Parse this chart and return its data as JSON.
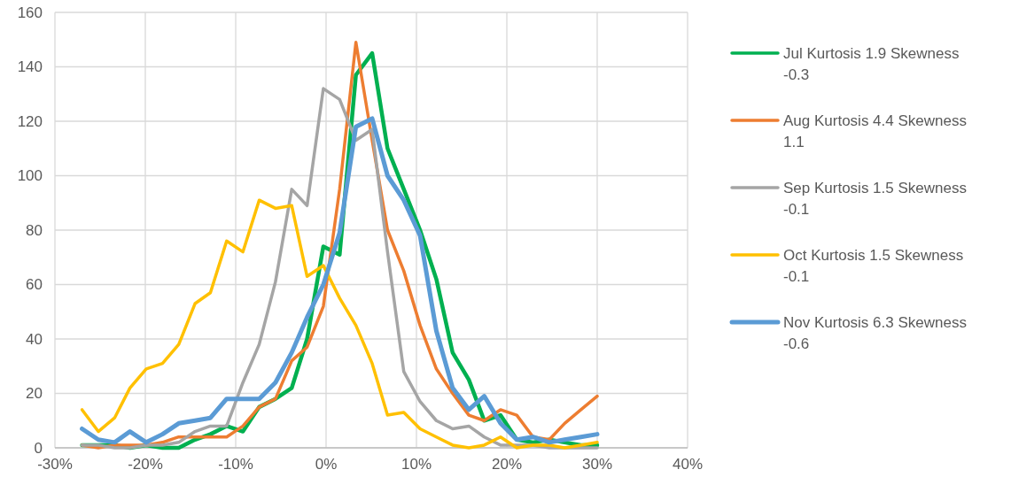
{
  "chart_data": {
    "type": "line",
    "x": [
      -27,
      -25.2,
      -23.4,
      -21.7,
      -19.9,
      -18.1,
      -16.3,
      -14.5,
      -12.8,
      -11,
      -9.2,
      -7.4,
      -5.6,
      -3.8,
      -2.1,
      -0.3,
      1.5,
      3.3,
      5.1,
      6.8,
      8.6,
      10.4,
      12.2,
      14,
      15.8,
      17.5,
      19.3,
      21.1,
      22.9,
      24.7,
      26.4,
      28.2,
      30
    ],
    "series": [
      {
        "name": "Jul Kurtosis 1.9 Skewness -0.3",
        "color": "#00b050",
        "values": [
          1,
          1,
          1,
          0,
          1,
          0,
          0,
          3,
          5,
          8,
          6,
          15,
          18,
          22,
          40,
          74,
          71,
          137,
          145,
          110,
          95,
          80,
          62,
          35,
          25,
          10,
          12,
          3,
          2,
          3,
          2,
          1,
          1
        ]
      },
      {
        "name": "Aug Kurtosis 4.4 Skewness 1.1",
        "color": "#ed7d31",
        "values": [
          1,
          0,
          1,
          1,
          1,
          2,
          4,
          4,
          4,
          4,
          8,
          15,
          18,
          32,
          37,
          52,
          95,
          149,
          113,
          80,
          65,
          45,
          29,
          20,
          12,
          10,
          14,
          12,
          4,
          3,
          9,
          14,
          19
        ]
      },
      {
        "name": "Sep Kurtosis 1.5 Skewness -0.1",
        "color": "#a5a5a5",
        "values": [
          1,
          1,
          0,
          0,
          1,
          1,
          2,
          6,
          8,
          8,
          24,
          38,
          61,
          95,
          89,
          132,
          128,
          113,
          117,
          72,
          28,
          17,
          10,
          7,
          8,
          4,
          1,
          1,
          1,
          0,
          0,
          0,
          0
        ]
      },
      {
        "name": "Oct Kurtosis 1.5 Skewness -0.1",
        "color": "#ffc000",
        "values": [
          14,
          6,
          11,
          22,
          29,
          31,
          38,
          53,
          57,
          76,
          72,
          91,
          88,
          89,
          63,
          67,
          55,
          45,
          31,
          12,
          13,
          7,
          4,
          1,
          0,
          1,
          4,
          0,
          1,
          1,
          0,
          1,
          2
        ]
      },
      {
        "name": "Nov Kurtosis 6.3 Skewness -0.6",
        "color": "#5b9bd5",
        "values": [
          7,
          3,
          2,
          6,
          2,
          5,
          9,
          10,
          11,
          18,
          18,
          18,
          24,
          35,
          48,
          60,
          79,
          118,
          121,
          100,
          91,
          78,
          43,
          22,
          14,
          19,
          9,
          3,
          4,
          2,
          3,
          4,
          5
        ]
      }
    ],
    "xlim": [
      -30,
      40
    ],
    "xticks": [
      {
        "value": -30,
        "label": "-30%"
      },
      {
        "value": -20,
        "label": "-20%"
      },
      {
        "value": -10,
        "label": "-10%"
      },
      {
        "value": 0,
        "label": "0%"
      },
      {
        "value": 10,
        "label": "10%"
      },
      {
        "value": 20,
        "label": "20%"
      },
      {
        "value": 30,
        "label": "30%"
      },
      {
        "value": 40,
        "label": "40%"
      }
    ],
    "ylim": [
      0,
      160
    ],
    "yticks": [
      0,
      20,
      40,
      60,
      80,
      100,
      120,
      140,
      160
    ],
    "grid": true,
    "legend": "right",
    "marker": "none",
    "line_style": "solid"
  }
}
